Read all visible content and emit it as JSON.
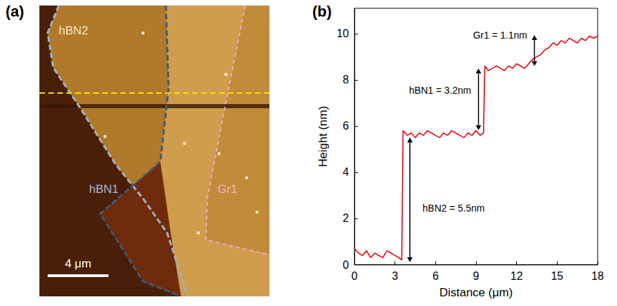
{
  "panel_a": {
    "letter": "(a)",
    "regions": [
      "hBN2",
      "hBN1",
      "Gr1"
    ],
    "scale_bar": "4 μm"
  },
  "chart_data": {
    "type": "line",
    "title": "(b)",
    "x_label": "Distance (μm)",
    "y_label": "Height (nm)",
    "x": [
      0,
      0.3,
      0.6,
      0.9,
      1.2,
      1.5,
      1.8,
      2.1,
      2.4,
      2.7,
      3.0,
      3.3,
      3.5,
      3.6,
      3.9,
      4.2,
      4.5,
      4.8,
      5.1,
      5.4,
      5.7,
      6.0,
      6.3,
      6.6,
      6.9,
      7.2,
      7.5,
      7.8,
      8.1,
      8.4,
      8.7,
      9.0,
      9.3,
      9.55,
      9.65,
      9.9,
      10.2,
      10.5,
      10.8,
      11.1,
      11.4,
      11.7,
      12.0,
      12.3,
      12.6,
      12.9,
      13.2,
      13.5,
      13.8,
      14.1,
      14.4,
      14.7,
      15.0,
      15.3,
      15.6,
      15.9,
      16.2,
      16.5,
      16.8,
      17.1,
      17.4,
      17.7,
      18.0
    ],
    "values": [
      0.7,
      0.5,
      0.4,
      0.6,
      0.3,
      0.5,
      0.4,
      0.3,
      0.6,
      0.5,
      0.4,
      0.3,
      0.2,
      5.8,
      5.6,
      5.7,
      5.5,
      5.7,
      5.6,
      5.8,
      5.7,
      5.6,
      5.5,
      5.7,
      5.6,
      5.8,
      5.7,
      5.6,
      5.5,
      5.7,
      5.6,
      5.8,
      5.6,
      5.7,
      8.6,
      8.4,
      8.5,
      8.6,
      8.5,
      8.4,
      8.6,
      8.5,
      8.7,
      8.6,
      8.5,
      8.7,
      8.9,
      9.0,
      9.1,
      9.3,
      9.4,
      9.6,
      9.5,
      9.7,
      9.6,
      9.8,
      9.7,
      9.6,
      9.8,
      9.7,
      9.9,
      9.8,
      9.9
    ],
    "color": "#e8000b",
    "xlim": [
      0,
      18
    ],
    "xticks": [
      0,
      3,
      6,
      9,
      12,
      15,
      18
    ],
    "ylim": [
      0,
      11.1
    ],
    "yticks": [
      0,
      2,
      4,
      6,
      8,
      10
    ],
    "grid": false,
    "annotations": [
      "Gr1 = 1.1nm",
      "hBN1 = 3.2nm",
      "hBN2 = 5.5nm"
    ]
  }
}
